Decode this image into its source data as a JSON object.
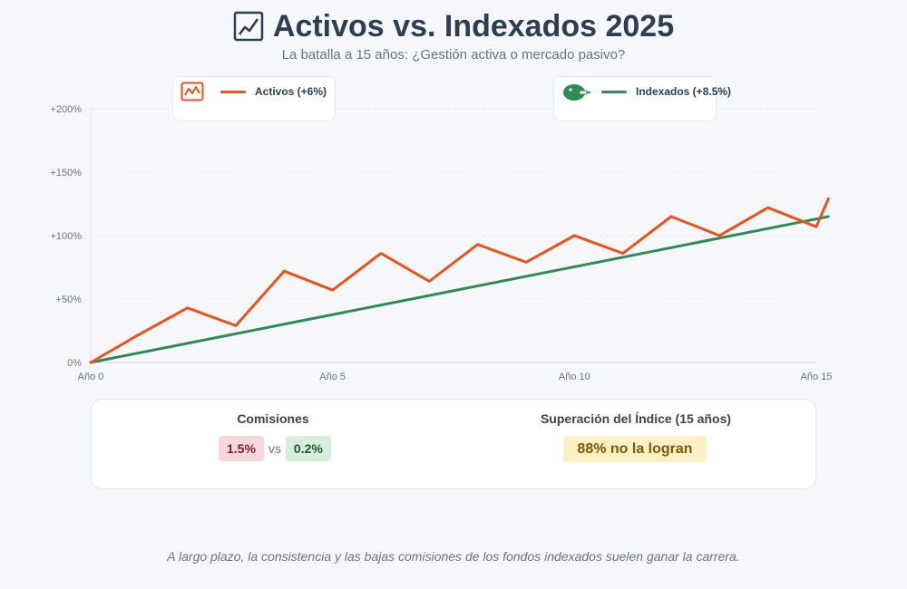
{
  "header": {
    "title": "Activos vs. Indexados 2025",
    "subtitle": "La batalla a 15 años: ¿Gestión activa o mercado pasivo?"
  },
  "legend": {
    "active": {
      "label": "Activos (+6%)",
      "icon": "chart-icon",
      "color": "#e8531c"
    },
    "index": {
      "label": "Indexados (+8.5%)",
      "icon": "piggy-bank-icon",
      "color": "#2e8b57"
    }
  },
  "chart_data": {
    "type": "line",
    "title": "Activos vs. Indexados 2025",
    "subtitle": "La batalla a 15 años: ¿Gestión activa o mercado pasivo?",
    "x": [
      0,
      1,
      2,
      3,
      4,
      5,
      6,
      7,
      8,
      9,
      10,
      11,
      12,
      13,
      14,
      15
    ],
    "x_tick_values": [
      0,
      5,
      10,
      15
    ],
    "x_tick_labels": [
      "Año 0",
      "Año 5",
      "Año 10",
      "Año 15"
    ],
    "y_tick_values": [
      0,
      50,
      100,
      150,
      200
    ],
    "y_tick_labels": [
      "0%",
      "+50%",
      "+100%",
      "+150%",
      "+200%"
    ],
    "ylim": [
      0,
      200
    ],
    "xlim": [
      0,
      15
    ],
    "grid": true,
    "legend_position": "top",
    "series": [
      {
        "name": "Activos (+6%)",
        "color": "#e8531c",
        "values": [
          0,
          22,
          43,
          29,
          72,
          57,
          86,
          64,
          93,
          79,
          100,
          86,
          115,
          100,
          122,
          107,
          129
        ],
        "x": [
          0,
          1,
          2,
          3,
          4,
          5,
          6,
          7,
          8,
          9,
          10,
          11,
          12,
          13,
          14,
          15,
          15.25
        ]
      },
      {
        "name": "Indexados (+8.5%)",
        "color": "#2e8b57",
        "values": [
          0,
          115
        ],
        "x": [
          0,
          15.25
        ]
      }
    ]
  },
  "stats": {
    "fees_title": "Comisiones",
    "active_fee": "1.5%",
    "vs": "vs",
    "index_fee": "0.2%",
    "outperf_title": "Superación del Índice (15 años)",
    "outperf_value": "88% no la logran"
  },
  "footnote": "A largo plazo, la consistencia y las bajas comisiones de los fondos indexados suelen ganar la carrera."
}
